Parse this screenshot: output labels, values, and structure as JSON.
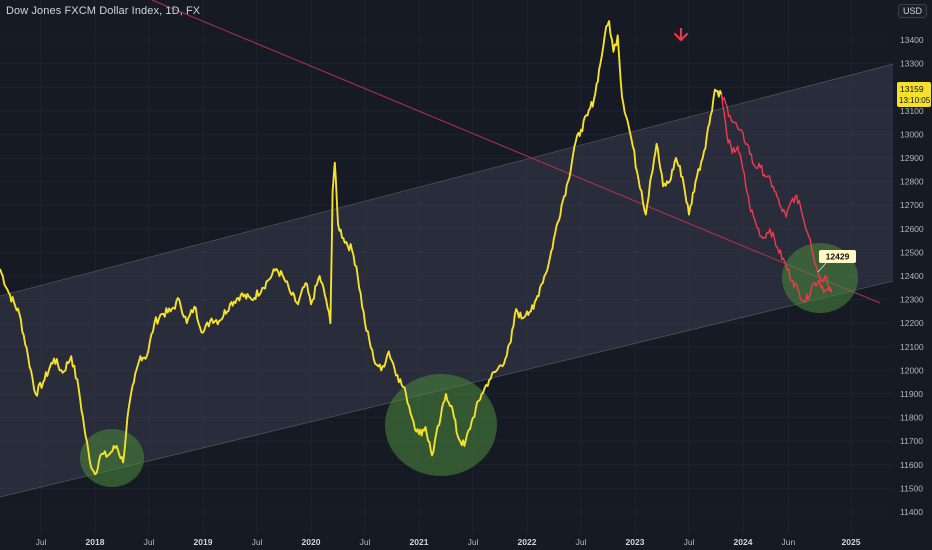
{
  "header": {
    "title": "Dow Jones FXCM Dollar Index, 1D, FX",
    "currency": "USD"
  },
  "price_tag": {
    "price": "13159",
    "countdown": "13:10:05"
  },
  "annotation_label": "12429",
  "colors": {
    "background": "#161a25",
    "price_line": "#f5e12b",
    "projection_line": "#f03a4d",
    "channel_fill": "#3a3d4c",
    "circle_fill": "#4c8a3c",
    "arrow": "#f23645",
    "label_bg": "#fff9c4"
  },
  "chart_data": {
    "type": "line",
    "title": "Dow Jones FXCM Dollar Index, 1D, FX",
    "xlabel": "",
    "ylabel": "",
    "ylim": [
      11350,
      13520
    ],
    "y_ticks": [
      11400,
      11500,
      11600,
      11700,
      11800,
      11900,
      12000,
      12100,
      12200,
      12300,
      12400,
      12500,
      12600,
      12700,
      12800,
      12900,
      13000,
      13100,
      13200,
      13300,
      13400
    ],
    "x_ticks": [
      {
        "label": "Jul",
        "t": 2017.5,
        "year": false
      },
      {
        "label": "2018",
        "t": 2018.0,
        "year": true
      },
      {
        "label": "Jul",
        "t": 2018.5,
        "year": false
      },
      {
        "label": "2019",
        "t": 2019.0,
        "year": true
      },
      {
        "label": "Jul",
        "t": 2019.5,
        "year": false
      },
      {
        "label": "2020",
        "t": 2020.0,
        "year": true
      },
      {
        "label": "Jul",
        "t": 2020.5,
        "year": false
      },
      {
        "label": "2021",
        "t": 2021.0,
        "year": true
      },
      {
        "label": "Jul",
        "t": 2021.5,
        "year": false
      },
      {
        "label": "2022",
        "t": 2022.0,
        "year": true
      },
      {
        "label": "Jul",
        "t": 2022.5,
        "year": false
      },
      {
        "label": "2023",
        "t": 2023.0,
        "year": true
      },
      {
        "label": "Jul",
        "t": 2023.5,
        "year": false
      },
      {
        "label": "2024",
        "t": 2024.0,
        "year": true
      },
      {
        "label": "Jun",
        "t": 2024.42,
        "year": false
      },
      {
        "label": "2025",
        "t": 2025.0,
        "year": true
      }
    ],
    "series": [
      {
        "color": "#f5e12b",
        "points": [
          [
            2017.12,
            12430
          ],
          [
            2017.2,
            12330
          ],
          [
            2017.3,
            12240
          ],
          [
            2017.38,
            12060
          ],
          [
            2017.45,
            11900
          ],
          [
            2017.52,
            11950
          ],
          [
            2017.62,
            12050
          ],
          [
            2017.7,
            11990
          ],
          [
            2017.78,
            12060
          ],
          [
            2017.85,
            11920
          ],
          [
            2017.9,
            11760
          ],
          [
            2017.95,
            11620
          ],
          [
            2018.0,
            11560
          ],
          [
            2018.05,
            11640
          ],
          [
            2018.12,
            11640
          ],
          [
            2018.2,
            11680
          ],
          [
            2018.26,
            11610
          ],
          [
            2018.3,
            11800
          ],
          [
            2018.36,
            11950
          ],
          [
            2018.42,
            12060
          ],
          [
            2018.48,
            12060
          ],
          [
            2018.55,
            12200
          ],
          [
            2018.62,
            12240
          ],
          [
            2018.7,
            12250
          ],
          [
            2018.78,
            12300
          ],
          [
            2018.85,
            12200
          ],
          [
            2018.92,
            12270
          ],
          [
            2019.0,
            12160
          ],
          [
            2019.08,
            12220
          ],
          [
            2019.15,
            12210
          ],
          [
            2019.25,
            12280
          ],
          [
            2019.35,
            12320
          ],
          [
            2019.45,
            12300
          ],
          [
            2019.55,
            12350
          ],
          [
            2019.6,
            12380
          ],
          [
            2019.68,
            12430
          ],
          [
            2019.75,
            12390
          ],
          [
            2019.82,
            12320
          ],
          [
            2019.88,
            12280
          ],
          [
            2019.95,
            12370
          ],
          [
            2020.0,
            12280
          ],
          [
            2020.08,
            12400
          ],
          [
            2020.14,
            12300
          ],
          [
            2020.18,
            12200
          ],
          [
            2020.2,
            12760
          ],
          [
            2020.22,
            12880
          ],
          [
            2020.25,
            12620
          ],
          [
            2020.3,
            12560
          ],
          [
            2020.38,
            12510
          ],
          [
            2020.42,
            12440
          ],
          [
            2020.5,
            12200
          ],
          [
            2020.58,
            12050
          ],
          [
            2020.65,
            12000
          ],
          [
            2020.72,
            12080
          ],
          [
            2020.8,
            11980
          ],
          [
            2020.88,
            11900
          ],
          [
            2020.95,
            11780
          ],
          [
            2021.0,
            11730
          ],
          [
            2021.06,
            11760
          ],
          [
            2021.12,
            11640
          ],
          [
            2021.2,
            11800
          ],
          [
            2021.25,
            11900
          ],
          [
            2021.3,
            11850
          ],
          [
            2021.36,
            11720
          ],
          [
            2021.42,
            11680
          ],
          [
            2021.5,
            11800
          ],
          [
            2021.58,
            11900
          ],
          [
            2021.65,
            11960
          ],
          [
            2021.72,
            12000
          ],
          [
            2021.8,
            12050
          ],
          [
            2021.85,
            12120
          ],
          [
            2021.9,
            12260
          ],
          [
            2021.95,
            12220
          ],
          [
            2022.0,
            12250
          ],
          [
            2022.06,
            12260
          ],
          [
            2022.12,
            12350
          ],
          [
            2022.2,
            12450
          ],
          [
            2022.26,
            12580
          ],
          [
            2022.32,
            12700
          ],
          [
            2022.38,
            12800
          ],
          [
            2022.44,
            12950
          ],
          [
            2022.5,
            13020
          ],
          [
            2022.56,
            13080
          ],
          [
            2022.62,
            13150
          ],
          [
            2022.68,
            13300
          ],
          [
            2022.72,
            13420
          ],
          [
            2022.76,
            13480
          ],
          [
            2022.8,
            13350
          ],
          [
            2022.84,
            13420
          ],
          [
            2022.88,
            13160
          ],
          [
            2022.93,
            13060
          ],
          [
            2022.98,
            12950
          ],
          [
            2023.02,
            12840
          ],
          [
            2023.06,
            12760
          ],
          [
            2023.1,
            12660
          ],
          [
            2023.14,
            12800
          ],
          [
            2023.2,
            12960
          ],
          [
            2023.26,
            12780
          ],
          [
            2023.32,
            12800
          ],
          [
            2023.38,
            12900
          ],
          [
            2023.44,
            12820
          ],
          [
            2023.5,
            12660
          ],
          [
            2023.56,
            12800
          ],
          [
            2023.64,
            12930
          ],
          [
            2023.7,
            13080
          ],
          [
            2023.74,
            13190
          ],
          [
            2023.8,
            13170
          ]
        ]
      },
      {
        "color": "#f03a4d",
        "points": [
          [
            2023.8,
            13170
          ],
          [
            2023.85,
            13000
          ],
          [
            2023.9,
            12920
          ],
          [
            2023.95,
            12950
          ],
          [
            2024.0,
            12850
          ],
          [
            2024.06,
            12700
          ],
          [
            2024.12,
            12620
          ],
          [
            2024.18,
            12560
          ],
          [
            2024.25,
            12600
          ],
          [
            2024.32,
            12520
          ],
          [
            2024.4,
            12440
          ],
          [
            2024.46,
            12380
          ],
          [
            2024.52,
            12330
          ],
          [
            2024.58,
            12290
          ],
          [
            2024.64,
            12360
          ],
          [
            2024.7,
            12380
          ],
          [
            2024.76,
            12340
          ],
          [
            2024.82,
            12330
          ]
        ]
      },
      {
        "color": "#f03a4d",
        "points": [
          [
            2023.8,
            13170
          ],
          [
            2023.88,
            13080
          ],
          [
            2023.96,
            13020
          ],
          [
            2024.04,
            12960
          ],
          [
            2024.1,
            12870
          ],
          [
            2024.16,
            12860
          ],
          [
            2024.22,
            12820
          ],
          [
            2024.28,
            12780
          ],
          [
            2024.34,
            12700
          ],
          [
            2024.4,
            12650
          ],
          [
            2024.46,
            12730
          ],
          [
            2024.52,
            12720
          ],
          [
            2024.56,
            12640
          ],
          [
            2024.62,
            12560
          ],
          [
            2024.68,
            12440
          ],
          [
            2024.72,
            12380
          ],
          [
            2024.76,
            12400
          ],
          [
            2024.82,
            12340
          ]
        ]
      }
    ]
  }
}
